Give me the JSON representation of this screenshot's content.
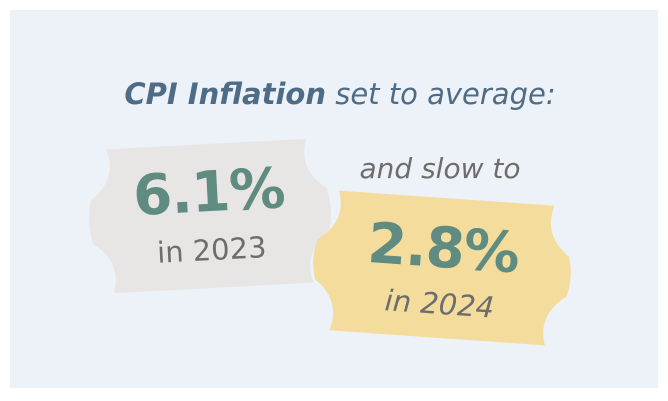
{
  "headline": {
    "bold": "CPI Inflation",
    "rest": "set to average:"
  },
  "connector": "and slow to",
  "tags": [
    {
      "value": "6.1%",
      "label": "in 2023"
    },
    {
      "value": "2.8%",
      "label": "in 2024"
    }
  ]
}
